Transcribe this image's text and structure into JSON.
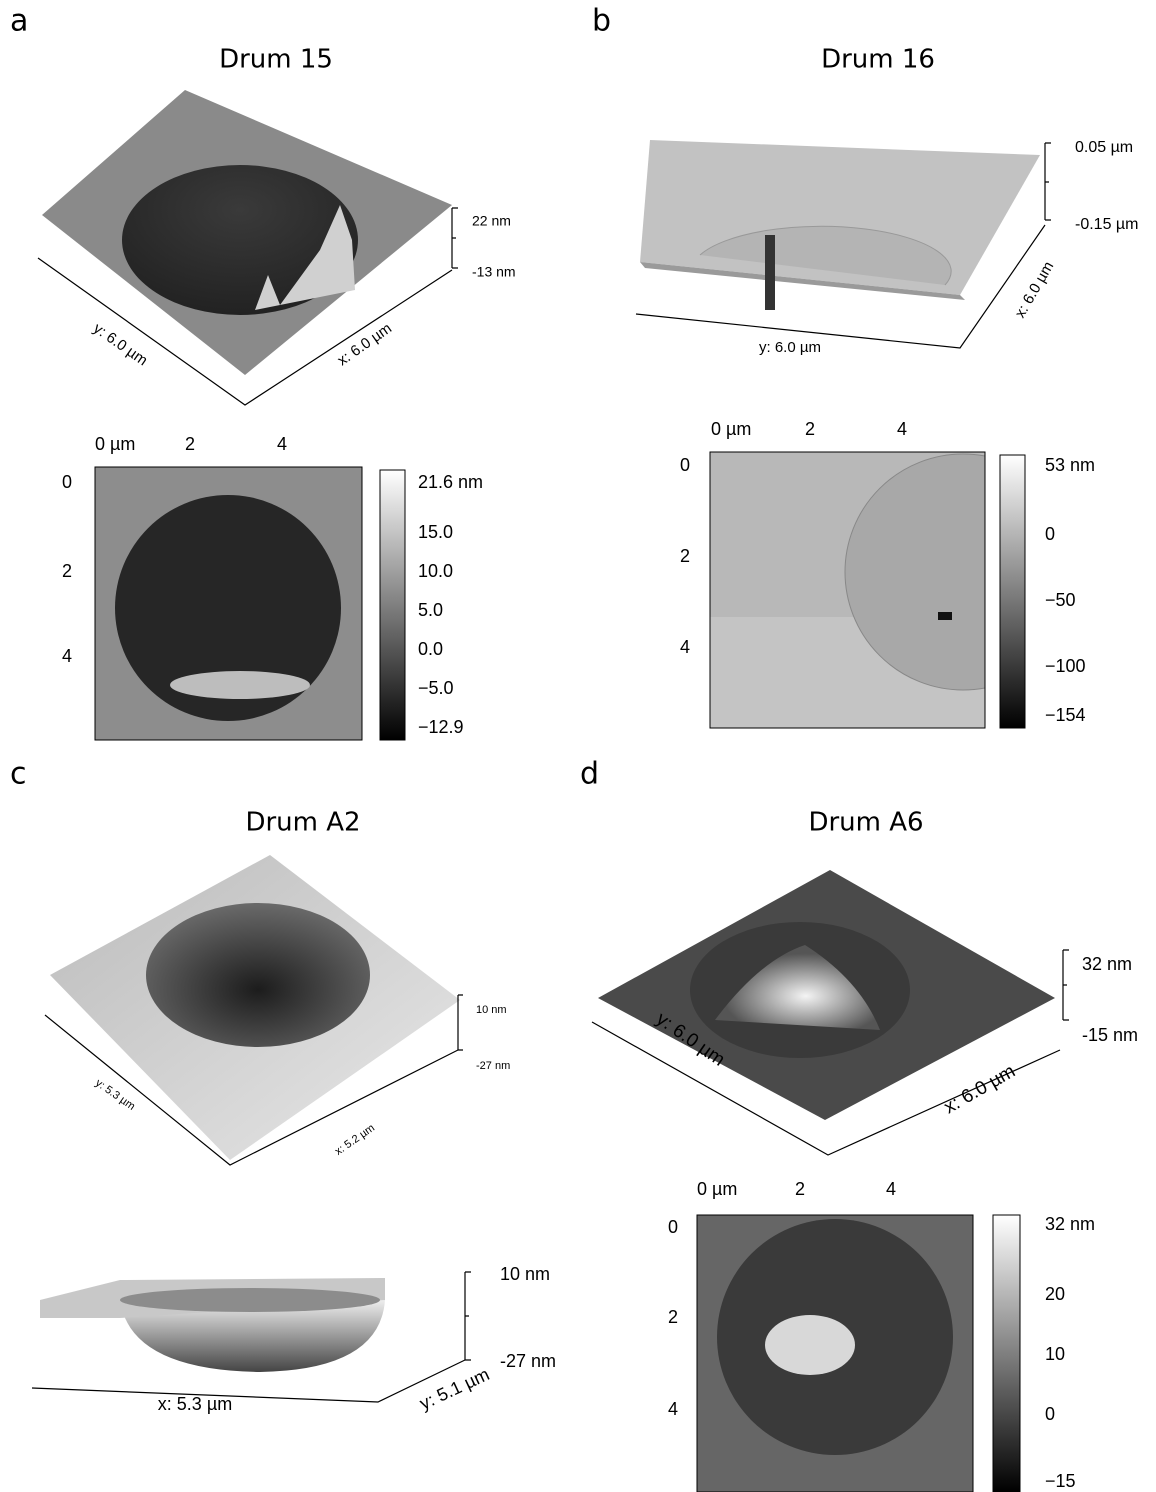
{
  "panels": [
    {
      "letter": "a",
      "title": "Drum 15",
      "surface": {
        "z_labels": [
          "22 nm",
          "-13 nm"
        ],
        "y_label": "y: 6.0 µm",
        "x_label": "x: 6.0 µm"
      },
      "map": {
        "x_ticks": [
          "0 µm",
          "2",
          "4"
        ],
        "y_ticks": [
          "0",
          "2",
          "4"
        ],
        "colorbar": [
          "21.6 nm",
          "15.0",
          "10.0",
          "5.0",
          "0.0",
          "−5.0",
          "−12.9"
        ]
      }
    },
    {
      "letter": "b",
      "title": "Drum 16",
      "surface": {
        "z_labels": [
          "0.05 µm",
          "-0.15 µm"
        ],
        "y_label": "y: 6.0 µm",
        "x_label": "x: 6.0 µm"
      },
      "map": {
        "x_ticks": [
          "0 µm",
          "2",
          "4"
        ],
        "y_ticks": [
          "0",
          "2",
          "4"
        ],
        "colorbar": [
          "53 nm",
          "0",
          "−50",
          "−100",
          "−154"
        ]
      }
    },
    {
      "letter": "c",
      "title": "Drum A2",
      "surface": {
        "z_labels": [
          "10 nm",
          "-27 nm"
        ],
        "y_label": "y: 5.3 µm",
        "x_label": "x: 5.2 µm"
      },
      "side": {
        "z_labels": [
          "10 nm",
          "-27 nm"
        ],
        "x_label": "x: 5.3 µm",
        "y_label": "y: 5.1 µm"
      }
    },
    {
      "letter": "d",
      "title": "Drum A6",
      "surface": {
        "z_labels": [
          "32 nm",
          "-15 nm"
        ],
        "y_label": "y: 6.0 µm",
        "x_label": "x: 6.0 µm"
      },
      "map": {
        "x_ticks": [
          "0 µm",
          "2",
          "4"
        ],
        "y_ticks": [
          "0",
          "2",
          "4"
        ],
        "colorbar": [
          "32 nm",
          "20",
          "10",
          "0",
          "−15"
        ]
      }
    }
  ]
}
